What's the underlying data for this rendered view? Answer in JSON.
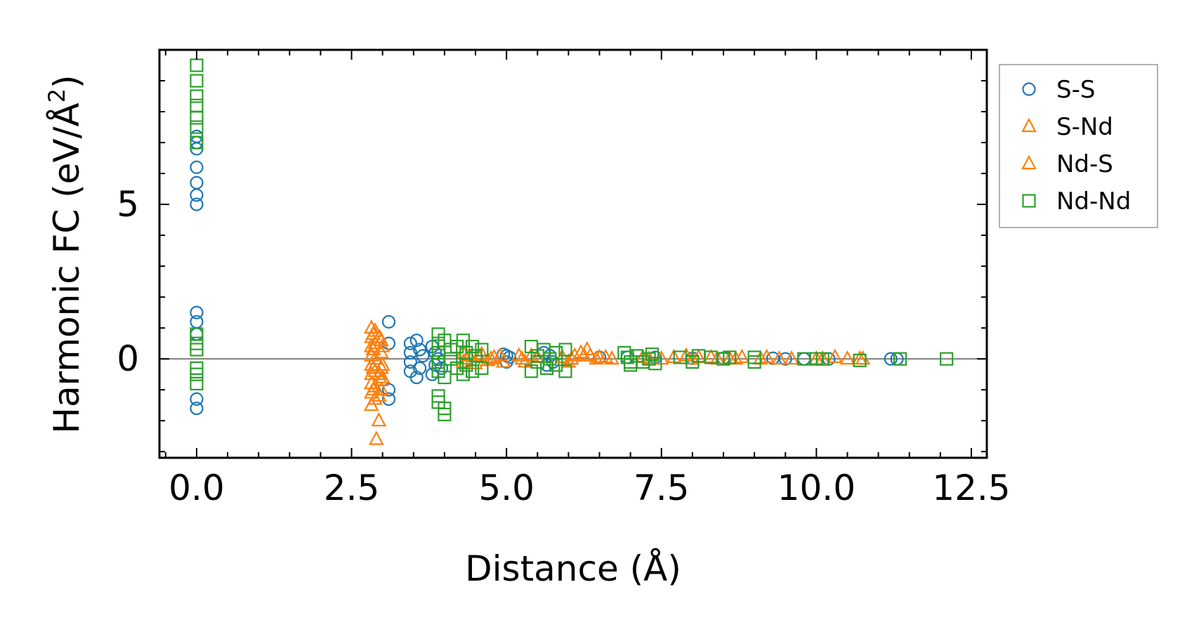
{
  "chart_data": {
    "type": "scatter",
    "title": "",
    "xlabel": "Distance (Å)",
    "ylabel": "Harmonic FC (eV/Å",
    "ylabel_sup": "2",
    "ylabel_end": ")",
    "xlim": [
      -0.6,
      12.75
    ],
    "ylim": [
      -3.2,
      10.0
    ],
    "xticks": [
      {
        "value": 0.0,
        "label": "0.0"
      },
      {
        "value": 2.5,
        "label": "2.5"
      },
      {
        "value": 5.0,
        "label": "5.0"
      },
      {
        "value": 7.5,
        "label": "7.5"
      },
      {
        "value": 10.0,
        "label": "10.0"
      },
      {
        "value": 12.5,
        "label": "12.5"
      }
    ],
    "yticks": [
      {
        "value": 0,
        "label": "0"
      },
      {
        "value": 5,
        "label": "5"
      }
    ],
    "x_minor_step": 0.5,
    "y_minor_step": 1,
    "zero_line": true,
    "legend_position": "outside-right",
    "series": [
      {
        "name": "S-S",
        "marker": "circle",
        "color": "#1f77b4",
        "points": [
          [
            0,
            7.2
          ],
          [
            0,
            7.0
          ],
          [
            0,
            6.8
          ],
          [
            0,
            6.2
          ],
          [
            0,
            5.7
          ],
          [
            0,
            5.3
          ],
          [
            0,
            5.0
          ],
          [
            0,
            1.5
          ],
          [
            0,
            1.2
          ],
          [
            0,
            0.8
          ],
          [
            0,
            -1.3
          ],
          [
            0,
            -1.6
          ],
          [
            3.1,
            1.2
          ],
          [
            3.1,
            0.5
          ],
          [
            3.1,
            -1.0
          ],
          [
            3.1,
            -1.3
          ],
          [
            3.45,
            0.5
          ],
          [
            3.45,
            0.2
          ],
          [
            3.45,
            -0.1
          ],
          [
            3.45,
            -0.4
          ],
          [
            3.55,
            0.6
          ],
          [
            3.55,
            -0.6
          ],
          [
            3.6,
            0.3
          ],
          [
            3.6,
            -0.3
          ],
          [
            3.65,
            0.1
          ],
          [
            3.8,
            0.4
          ],
          [
            3.8,
            -0.5
          ],
          [
            3.85,
            0.2
          ],
          [
            3.85,
            -0.2
          ],
          [
            3.9,
            0.0
          ],
          [
            3.95,
            -0.3
          ],
          [
            4.95,
            0.15
          ],
          [
            5.0,
            0.1
          ],
          [
            5.0,
            -0.1
          ],
          [
            5.05,
            0.05
          ],
          [
            5.6,
            0.2
          ],
          [
            5.65,
            -0.2
          ],
          [
            5.7,
            0.1
          ],
          [
            5.75,
            -0.1
          ],
          [
            6.5,
            0.05
          ],
          [
            6.95,
            0.05
          ],
          [
            7.4,
            0.05
          ],
          [
            8.0,
            0.02
          ],
          [
            8.5,
            0.02
          ],
          [
            9.3,
            0.02
          ],
          [
            9.5,
            0.0
          ],
          [
            9.8,
            0.0
          ],
          [
            10.2,
            0.0
          ],
          [
            11.2,
            0.0
          ],
          [
            11.3,
            0.0
          ]
        ]
      },
      {
        "name": "S-Nd",
        "marker": "triangle",
        "color": "#ff7f0e",
        "points": [
          [
            2.82,
            1.0
          ],
          [
            2.82,
            0.7
          ],
          [
            2.82,
            0.4
          ],
          [
            2.82,
            0.1
          ],
          [
            2.82,
            -0.2
          ],
          [
            2.82,
            -0.5
          ],
          [
            2.82,
            -0.8
          ],
          [
            2.82,
            -1.1
          ],
          [
            2.82,
            -1.5
          ],
          [
            2.88,
            0.9
          ],
          [
            2.88,
            0.5
          ],
          [
            2.88,
            0.0
          ],
          [
            2.88,
            -0.4
          ],
          [
            2.88,
            -0.9
          ],
          [
            2.88,
            -1.3
          ],
          [
            2.94,
            -2.0
          ],
          [
            2.9,
            -2.6
          ],
          [
            2.98,
            0.6
          ],
          [
            2.98,
            0.2
          ],
          [
            2.98,
            -0.3
          ],
          [
            2.98,
            -0.7
          ],
          [
            2.98,
            -1.0
          ],
          [
            3.0,
            0.4
          ],
          [
            3.0,
            -0.2
          ],
          [
            3.0,
            -0.6
          ],
          [
            4.3,
            0.2
          ],
          [
            4.3,
            -0.1
          ],
          [
            4.4,
            0.1
          ],
          [
            4.5,
            -0.15
          ],
          [
            4.6,
            0.15
          ],
          [
            4.7,
            -0.05
          ],
          [
            4.8,
            0.05
          ],
          [
            4.9,
            0.1
          ],
          [
            5.2,
            0.1
          ],
          [
            5.3,
            -0.1
          ],
          [
            5.4,
            0.1
          ],
          [
            5.9,
            0.05
          ],
          [
            6.0,
            -0.1
          ],
          [
            6.1,
            0.1
          ],
          [
            6.2,
            0.2
          ],
          [
            6.3,
            0.3
          ],
          [
            6.35,
            0.1
          ],
          [
            6.5,
            0.05
          ],
          [
            6.6,
            0.05
          ],
          [
            7.2,
            0.05
          ],
          [
            7.5,
            0.0
          ],
          [
            7.9,
            0.1
          ],
          [
            8.0,
            0.0
          ],
          [
            8.3,
            0.05
          ],
          [
            8.6,
            0.0
          ],
          [
            8.8,
            0.05
          ],
          [
            9.1,
            0.0
          ],
          [
            9.4,
            0.0
          ],
          [
            10.0,
            0.0
          ],
          [
            10.3,
            0.05
          ],
          [
            10.7,
            0.0
          ]
        ]
      },
      {
        "name": "Nd-S",
        "marker": "triangle",
        "color": "#ff7f0e",
        "points": [
          [
            2.85,
            0.8
          ],
          [
            2.85,
            0.3
          ],
          [
            2.85,
            -0.3
          ],
          [
            2.85,
            -1.0
          ],
          [
            2.95,
            0.7
          ],
          [
            2.95,
            -0.5
          ],
          [
            2.95,
            -1.2
          ],
          [
            4.35,
            0.0
          ],
          [
            4.55,
            0.1
          ],
          [
            4.75,
            0.0
          ],
          [
            4.95,
            -0.1
          ],
          [
            5.25,
            0.0
          ],
          [
            5.5,
            0.05
          ],
          [
            6.05,
            0.0
          ],
          [
            6.25,
            0.1
          ],
          [
            6.45,
            0.0
          ],
          [
            6.7,
            0.0
          ],
          [
            7.3,
            0.0
          ],
          [
            7.7,
            0.05
          ],
          [
            8.1,
            0.05
          ],
          [
            8.4,
            0.0
          ],
          [
            8.7,
            0.0
          ],
          [
            9.2,
            0.05
          ],
          [
            9.6,
            0.0
          ],
          [
            10.1,
            0.0
          ],
          [
            10.5,
            0.0
          ],
          [
            10.75,
            0.0
          ]
        ]
      },
      {
        "name": "Nd-Nd",
        "marker": "square",
        "color": "#2ca02c",
        "points": [
          [
            0,
            9.5
          ],
          [
            0,
            9.0
          ],
          [
            0,
            8.5
          ],
          [
            0,
            8.2
          ],
          [
            0,
            7.8
          ],
          [
            0,
            7.5
          ],
          [
            0,
            7.0
          ],
          [
            0,
            0.8
          ],
          [
            0,
            0.5
          ],
          [
            0,
            0.3
          ],
          [
            0,
            -0.3
          ],
          [
            0,
            -0.5
          ],
          [
            0,
            -0.8
          ],
          [
            3.9,
            0.8
          ],
          [
            3.9,
            0.5
          ],
          [
            3.9,
            0.2
          ],
          [
            3.9,
            -0.1
          ],
          [
            3.9,
            -0.4
          ],
          [
            3.9,
            -1.4
          ],
          [
            3.9,
            -1.2
          ],
          [
            4.0,
            -1.6
          ],
          [
            4.0,
            -1.8
          ],
          [
            4.0,
            0.6
          ],
          [
            4.0,
            -0.6
          ],
          [
            4.1,
            0.3
          ],
          [
            4.1,
            0.0
          ],
          [
            4.2,
            0.4
          ],
          [
            4.2,
            -0.3
          ],
          [
            4.3,
            0.6
          ],
          [
            4.3,
            -0.5
          ],
          [
            4.35,
            0.2
          ],
          [
            4.35,
            -0.2
          ],
          [
            4.45,
            0.4
          ],
          [
            4.45,
            -0.4
          ],
          [
            4.5,
            0.1
          ],
          [
            4.6,
            0.3
          ],
          [
            4.6,
            -0.3
          ],
          [
            5.4,
            0.4
          ],
          [
            5.4,
            -0.4
          ],
          [
            5.5,
            0.1
          ],
          [
            5.5,
            -0.1
          ],
          [
            5.6,
            0.3
          ],
          [
            5.65,
            -0.3
          ],
          [
            5.7,
            0.0
          ],
          [
            5.8,
            0.2
          ],
          [
            5.8,
            -0.2
          ],
          [
            5.95,
            0.3
          ],
          [
            5.95,
            -0.4
          ],
          [
            6.9,
            0.2
          ],
          [
            6.95,
            0.05
          ],
          [
            7.0,
            -0.1
          ],
          [
            7.0,
            -0.2
          ],
          [
            7.1,
            0.1
          ],
          [
            7.2,
            -0.1
          ],
          [
            7.3,
            0.0
          ],
          [
            7.35,
            0.15
          ],
          [
            7.4,
            -0.15
          ],
          [
            7.8,
            0.05
          ],
          [
            8.0,
            -0.1
          ],
          [
            8.1,
            0.1
          ],
          [
            8.3,
            0.05
          ],
          [
            8.5,
            0.0
          ],
          [
            8.6,
            0.05
          ],
          [
            9.0,
            -0.1
          ],
          [
            9.0,
            0.05
          ],
          [
            9.8,
            0.0
          ],
          [
            10.0,
            0.0
          ],
          [
            10.1,
            0.0
          ],
          [
            10.7,
            -0.05
          ],
          [
            11.35,
            0.0
          ],
          [
            12.1,
            0.0
          ]
        ]
      }
    ]
  }
}
